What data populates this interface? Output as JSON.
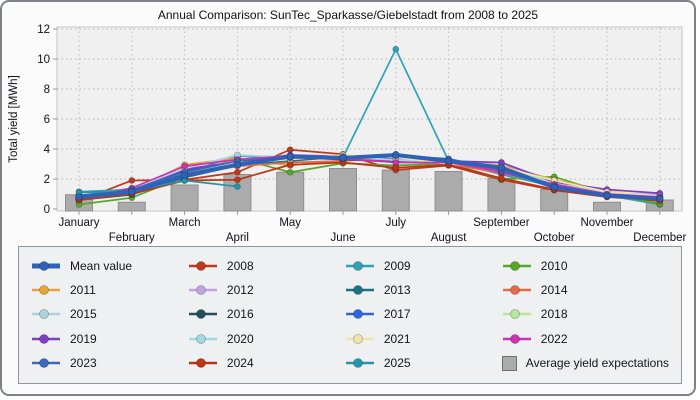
{
  "window": {
    "name": "annual-comparison-chart-window"
  },
  "chart_data": {
    "type": "line+bar",
    "title": "Annual Comparison: SunTec_Sparkasse/Giebelstadt from 2008 to 2025",
    "xlabel": "",
    "ylabel": "Total yield [MWh]",
    "ylim": [
      0,
      12
    ],
    "yticks": [
      0,
      2,
      4,
      6,
      8,
      10,
      12
    ],
    "grid": "dotted",
    "legend_position": "bottom",
    "categories": [
      "January",
      "February",
      "March",
      "April",
      "May",
      "June",
      "July",
      "August",
      "September",
      "October",
      "November",
      "December"
    ],
    "bar_series": {
      "name": "Average yield expectations",
      "color": "#ababab",
      "border_color": "#8f8f8f",
      "values": [
        0.95,
        0.45,
        1.6,
        2.3,
        2.45,
        2.7,
        2.6,
        2.5,
        2.05,
        1.3,
        0.45,
        0.6
      ]
    },
    "series": [
      {
        "name": "Mean value",
        "color": "#2e62b8",
        "thick": true,
        "values": [
          0.8,
          1.15,
          2.25,
          2.95,
          3.5,
          3.4,
          3.6,
          3.2,
          2.75,
          1.45,
          0.9,
          0.7
        ]
      },
      {
        "name": "2008",
        "color": "#c0391b",
        "values": [
          0.55,
          1.9,
          1.95,
          2.45,
          3.95,
          3.65,
          2.6,
          2.9,
          1.95,
          1.25,
          0.8,
          0.55
        ]
      },
      {
        "name": "2009",
        "color": "#2fa3b5",
        "values": [
          1.15,
          1.3,
          2.4,
          3.55,
          3.3,
          3.45,
          10.65,
          3.2,
          2.3,
          1.5,
          0.9,
          0.3
        ]
      },
      {
        "name": "2010",
        "color": "#55a82a",
        "values": [
          0.3,
          0.75,
          2.15,
          3.4,
          2.45,
          3.05,
          2.9,
          3.05,
          2.0,
          2.15,
          1.05,
          0.35
        ]
      },
      {
        "name": "2011",
        "color": "#e5a43c",
        "values": [
          0.85,
          1.2,
          2.95,
          3.4,
          2.9,
          3.25,
          3.3,
          3.2,
          2.9,
          1.95,
          1.2,
          0.75
        ]
      },
      {
        "name": "2012",
        "color": "#bfa4dd",
        "values": [
          0.75,
          1.15,
          2.6,
          3.2,
          3.4,
          3.35,
          3.2,
          3.1,
          3.1,
          1.7,
          1.1,
          0.95
        ]
      },
      {
        "name": "2013",
        "color": "#1e7382",
        "values": [
          0.6,
          0.95,
          2.1,
          2.9,
          3.2,
          3.5,
          3.3,
          3.15,
          2.6,
          1.6,
          0.85,
          0.6
        ]
      },
      {
        "name": "2014",
        "color": "#e5694a",
        "values": [
          0.7,
          1.1,
          2.3,
          2.85,
          3.1,
          3.2,
          3.45,
          3.0,
          2.4,
          1.65,
          0.95,
          0.65
        ]
      },
      {
        "name": "2015",
        "color": "#abd3dc",
        "values": [
          0.8,
          1.25,
          2.45,
          3.0,
          3.35,
          3.55,
          3.4,
          3.1,
          2.55,
          1.75,
          1.1,
          0.8
        ]
      },
      {
        "name": "2016",
        "color": "#235058",
        "values": [
          0.75,
          1.3,
          2.55,
          3.1,
          3.45,
          3.3,
          3.15,
          3.25,
          2.65,
          1.7,
          1.0,
          0.7
        ]
      },
      {
        "name": "2017",
        "color": "#2f65dd",
        "values": [
          0.85,
          1.2,
          2.5,
          3.05,
          3.5,
          3.45,
          3.65,
          3.3,
          2.45,
          1.6,
          0.95,
          0.85
        ]
      },
      {
        "name": "2018",
        "color": "#b8e69a",
        "values": [
          0.65,
          1.05,
          2.35,
          3.25,
          3.55,
          3.4,
          3.35,
          3.05,
          2.75,
          1.85,
          1.05,
          0.6
        ]
      },
      {
        "name": "2019",
        "color": "#7d3fc1",
        "values": [
          0.7,
          1.25,
          2.65,
          3.15,
          3.6,
          3.5,
          3.4,
          3.2,
          3.1,
          1.8,
          1.3,
          1.05
        ]
      },
      {
        "name": "2020",
        "color": "#a3d8e0",
        "values": [
          0.9,
          1.35,
          2.7,
          3.6,
          3.45,
          3.55,
          3.25,
          3.15,
          2.7,
          1.7,
          1.05,
          0.75
        ]
      },
      {
        "name": "2021",
        "color": "#f2e3ac",
        "values": [
          0.8,
          1.1,
          2.4,
          3.1,
          3.3,
          3.6,
          3.45,
          3.0,
          2.8,
          1.9,
          1.15,
          0.85
        ]
      },
      {
        "name": "2022",
        "color": "#cf30b5",
        "values": [
          0.75,
          1.4,
          2.85,
          3.3,
          3.55,
          3.35,
          3.1,
          3.1,
          2.5,
          1.65,
          1.0,
          0.8
        ]
      },
      {
        "name": "2023",
        "color": "#3a6cb5",
        "values": [
          0.9,
          1.3,
          2.45,
          3.2,
          3.4,
          3.5,
          3.55,
          3.35,
          2.6,
          1.55,
          0.9,
          0.75
        ]
      },
      {
        "name": "2024",
        "color": "#bc3517",
        "values": [
          0.6,
          1.0,
          1.9,
          1.95,
          2.95,
          3.1,
          2.75,
          2.95,
          2.05,
          1.3,
          0.85,
          0.55
        ]
      },
      {
        "name": "2025",
        "color": "#2596a9",
        "values": [
          1.1,
          1.2,
          1.9,
          1.5,
          null,
          null,
          null,
          null,
          null,
          null,
          null,
          null
        ]
      }
    ]
  }
}
